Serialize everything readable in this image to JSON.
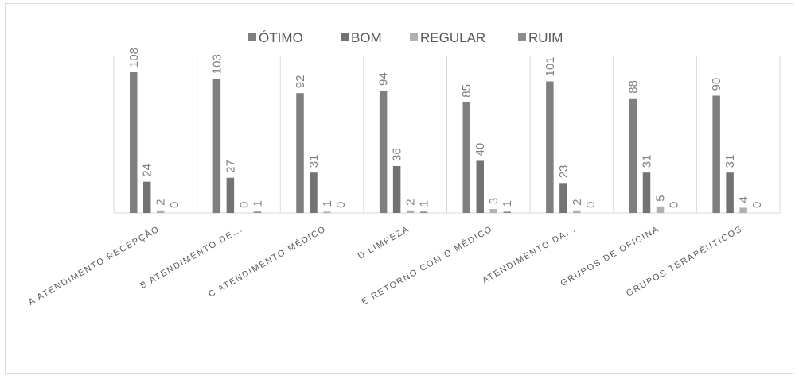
{
  "chart_data": {
    "type": "bar",
    "title": "",
    "xlabel": "",
    "ylabel": "",
    "categories": [
      "A ATENDIMENTO RECEPÇÃO",
      "B ATENDIMENTO DE...",
      "C ATENDIMENTO MÉDICO",
      "D LIMPEZA",
      "E RETORNO COM O MÉDICO",
      "ATENDIMENTO DA...",
      "GRUPOS DE OFICINA",
      "GRUPOS TERAPÊUTICOS"
    ],
    "series": [
      {
        "name": "ÓTIMO",
        "color": "#7f7f7f",
        "values": [
          108,
          103,
          92,
          94,
          85,
          101,
          88,
          90
        ]
      },
      {
        "name": "BOM",
        "color": "#737373",
        "values": [
          24,
          27,
          31,
          36,
          40,
          23,
          31,
          31
        ]
      },
      {
        "name": "REGULAR",
        "color": "#b0b0b0",
        "values": [
          2,
          0,
          1,
          2,
          3,
          2,
          5,
          4
        ]
      },
      {
        "name": "RUIM",
        "color": "#8c8c8c",
        "values": [
          0,
          1,
          0,
          1,
          1,
          0,
          0,
          0
        ]
      }
    ],
    "ylim": [
      0,
      108
    ],
    "grid": false,
    "legend_position": "top-center",
    "data_labels": true,
    "data_label_rotation": "vertical",
    "category_label_rotation": "diagonal"
  }
}
